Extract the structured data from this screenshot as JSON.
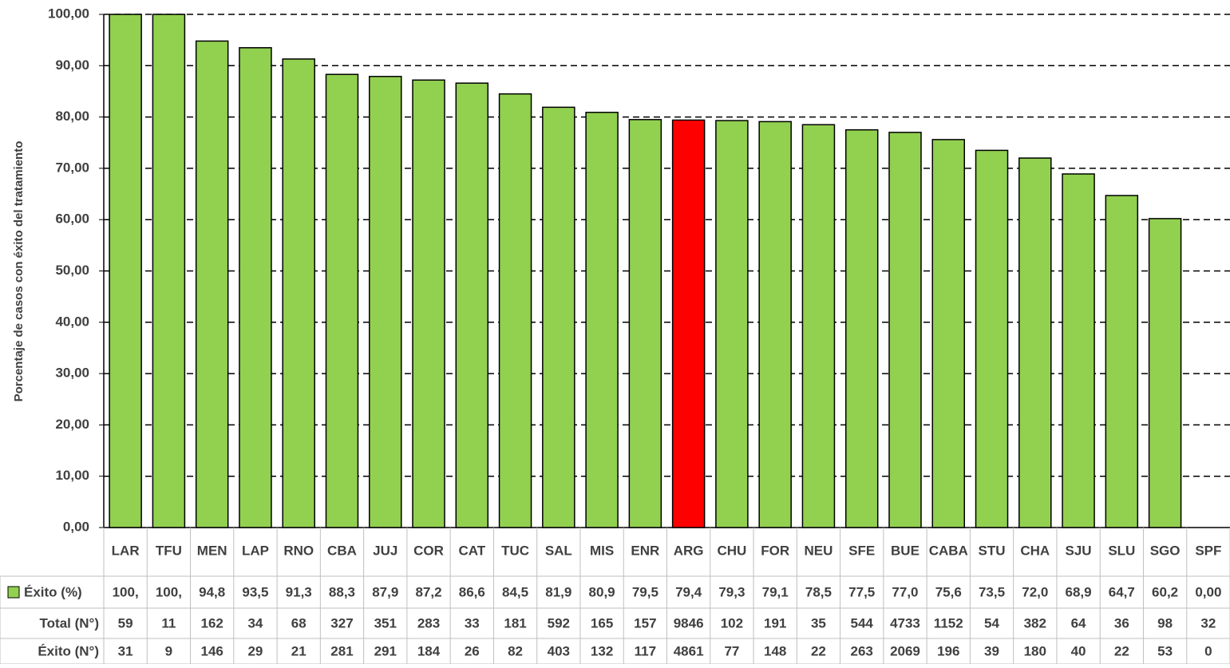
{
  "chart_data": {
    "type": "bar",
    "y_label": "Porcentaje de casos con éxito del tratamiento",
    "categories": [
      "LAR",
      "TFU",
      "MEN",
      "LAP",
      "RNO",
      "CBA",
      "JUJ",
      "COR",
      "CAT",
      "TUC",
      "SAL",
      "MIS",
      "ENR",
      "ARG",
      "CHU",
      "FOR",
      "NEU",
      "SFE",
      "BUE",
      "CABA",
      "STU",
      "CHA",
      "SJU",
      "SLU",
      "SGO",
      "SPF"
    ],
    "series": [
      {
        "name": "Éxito (%)",
        "color": "#92d050",
        "colors": [
          "#92d050",
          "#92d050",
          "#92d050",
          "#92d050",
          "#92d050",
          "#92d050",
          "#92d050",
          "#92d050",
          "#92d050",
          "#92d050",
          "#92d050",
          "#92d050",
          "#92d050",
          "#ff0000",
          "#92d050",
          "#92d050",
          "#92d050",
          "#92d050",
          "#92d050",
          "#92d050",
          "#92d050",
          "#92d050",
          "#92d050",
          "#92d050",
          "#92d050",
          "#92d050"
        ],
        "values": [
          100,
          100,
          94.8,
          93.5,
          91.3,
          88.3,
          87.9,
          87.2,
          86.6,
          84.5,
          81.9,
          80.9,
          79.5,
          79.4,
          79.3,
          79.1,
          78.5,
          77.5,
          77.0,
          75.6,
          73.5,
          72.0,
          68.9,
          64.7,
          60.2,
          0
        ],
        "value_labels": [
          "100,",
          "100,",
          "94,8",
          "93,5",
          "91,3",
          "88,3",
          "87,9",
          "87,2",
          "86,6",
          "84,5",
          "81,9",
          "80,9",
          "79,5",
          "79,4",
          "79,3",
          "79,1",
          "78,5",
          "77,5",
          "77,0",
          "75,6",
          "73,5",
          "72,0",
          "68,9",
          "64,7",
          "60,2",
          "0,00"
        ]
      }
    ],
    "table_rows": [
      {
        "name": "Total (N°)",
        "values": [
          59,
          11,
          162,
          34,
          68,
          327,
          351,
          283,
          33,
          181,
          592,
          165,
          157,
          9846,
          102,
          191,
          35,
          544,
          4733,
          1152,
          54,
          382,
          64,
          36,
          98,
          32
        ]
      },
      {
        "name": "Éxito (N°)",
        "values": [
          31,
          9,
          146,
          29,
          21,
          281,
          291,
          184,
          26,
          82,
          403,
          132,
          117,
          4861,
          77,
          148,
          22,
          263,
          2069,
          196,
          39,
          180,
          40,
          22,
          53,
          0
        ]
      }
    ],
    "ylim": [
      0,
      100
    ],
    "yticks": [
      {
        "value": 0,
        "label": "0,00"
      },
      {
        "value": 10,
        "label": "10,00"
      },
      {
        "value": 20,
        "label": "20,00"
      },
      {
        "value": 30,
        "label": "30,00"
      },
      {
        "value": 40,
        "label": "40,00"
      },
      {
        "value": 50,
        "label": "50,00"
      },
      {
        "value": 60,
        "label": "60,00"
      },
      {
        "value": 70,
        "label": "70,00"
      },
      {
        "value": 80,
        "label": "80,00"
      },
      {
        "value": 90,
        "label": "90,00"
      },
      {
        "value": 100,
        "label": "100,00"
      }
    ],
    "grid": true
  }
}
